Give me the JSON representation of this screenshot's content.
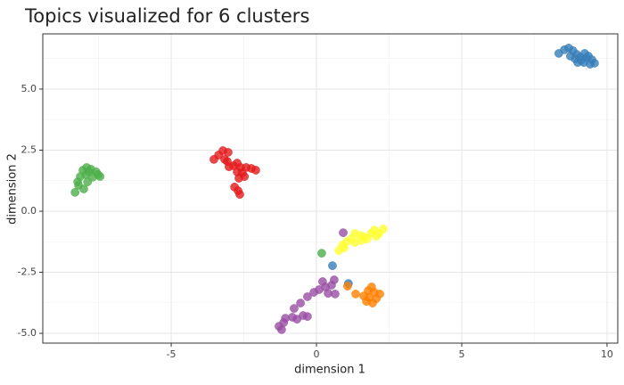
{
  "chart_data": {
    "type": "scatter",
    "title": "Topics visualized for 6 clusters",
    "x_label": "dimension 1",
    "y_label": "dimension 2",
    "xlim": [
      -9.42,
      10.37
    ],
    "ylim": [
      -5.4,
      7.26
    ],
    "xticks": [
      -5,
      0,
      5,
      10
    ],
    "yticks": [
      {
        "value": -5,
        "label": "-5.0"
      },
      -2.5,
      {
        "value": 0,
        "label": "0.0"
      },
      2.5,
      {
        "value": 5,
        "label": "5.0"
      }
    ],
    "xminor": [
      -7.5,
      -2.5,
      2.5,
      7.5
    ],
    "yminor": [
      -3.75,
      -1.25,
      1.25,
      3.75,
      6.25
    ],
    "grid": true,
    "series": [
      {
        "color": "#E41A1C",
        "x": [
          -3.53,
          -3.37,
          -3.22,
          -3.04,
          -3.07,
          -2.85,
          -2.73,
          -2.61,
          -2.73,
          -2.55,
          -2.42,
          -2.24,
          -2.09,
          -2.82,
          -2.7,
          -2.64,
          -3.01,
          -3.16,
          -2.48,
          -2.67
        ],
        "values": [
          2.12,
          2.3,
          2.48,
          2.41,
          2.04,
          1.86,
          1.97,
          1.79,
          1.61,
          1.57,
          1.79,
          1.75,
          1.68,
          0.99,
          0.84,
          0.69,
          1.82,
          2.12,
          1.42,
          1.35
        ]
      },
      {
        "color": "#377EB8",
        "x": [
          8.34,
          8.53,
          8.68,
          8.83,
          8.96,
          9.08,
          9.23,
          9.36,
          9.48,
          9.57,
          9.42,
          9.2,
          8.99,
          8.74,
          9.11,
          8.9,
          9.29,
          0.55,
          1.1
        ],
        "values": [
          6.46,
          6.61,
          6.68,
          6.57,
          6.42,
          6.31,
          6.46,
          6.35,
          6.2,
          6.06,
          6.02,
          6.09,
          6.09,
          6.35,
          6.17,
          6.24,
          6.28,
          -2.23,
          -2.96
        ]
      },
      {
        "color": "#4DAF4A",
        "x": [
          -8.31,
          -8.22,
          -8.13,
          -8.04,
          -7.91,
          -7.76,
          -7.58,
          -7.45,
          -7.7,
          -7.88,
          -8.01,
          -8.19,
          -7.52,
          -7.94,
          -7.82,
          0.18
        ],
        "values": [
          0.77,
          1.2,
          1.42,
          1.68,
          1.79,
          1.72,
          1.61,
          1.42,
          1.39,
          1.2,
          0.91,
          1.06,
          1.5,
          1.5,
          1.61,
          -1.72
        ]
      },
      {
        "color": "#984EA3",
        "x": [
          -1.29,
          -1.13,
          -1.07,
          -1.2,
          -0.83,
          -0.67,
          -0.46,
          -0.31,
          -0.77,
          -0.55,
          -0.31,
          -0.09,
          0.09,
          0.31,
          0.52,
          0.61,
          0.4,
          0.64,
          0.21,
          0.92
        ],
        "values": [
          -4.71,
          -4.56,
          -4.38,
          -4.85,
          -4.34,
          -4.42,
          -4.27,
          -4.31,
          -3.98,
          -3.76,
          -3.5,
          -3.32,
          -3.21,
          -3.1,
          -3.03,
          -2.81,
          -3.36,
          -3.39,
          -2.88,
          -0.88
        ]
      },
      {
        "color": "#FF7F00",
        "x": [
          1.07,
          1.35,
          1.63,
          1.78,
          1.9,
          1.99,
          2.06,
          1.93,
          1.81,
          2.18,
          1.72
        ],
        "values": [
          -3.07,
          -3.39,
          -3.47,
          -3.25,
          -3.1,
          -3.32,
          -3.58,
          -3.76,
          -3.54,
          -3.39,
          -3.69
        ]
      },
      {
        "color": "#FFFF33",
        "x": [
          0.77,
          0.89,
          1.04,
          1.2,
          1.32,
          1.5,
          1.63,
          1.75,
          1.87,
          1.99,
          2.15,
          2.3,
          1.32,
          1.56,
          0.95,
          2.06
        ],
        "values": [
          -1.61,
          -1.39,
          -1.24,
          -1.13,
          -1.28,
          -0.99,
          -1.06,
          -1.13,
          -0.91,
          -0.77,
          -0.91,
          -0.73,
          -0.91,
          -1.2,
          -1.5,
          -1.02
        ]
      }
    ]
  }
}
